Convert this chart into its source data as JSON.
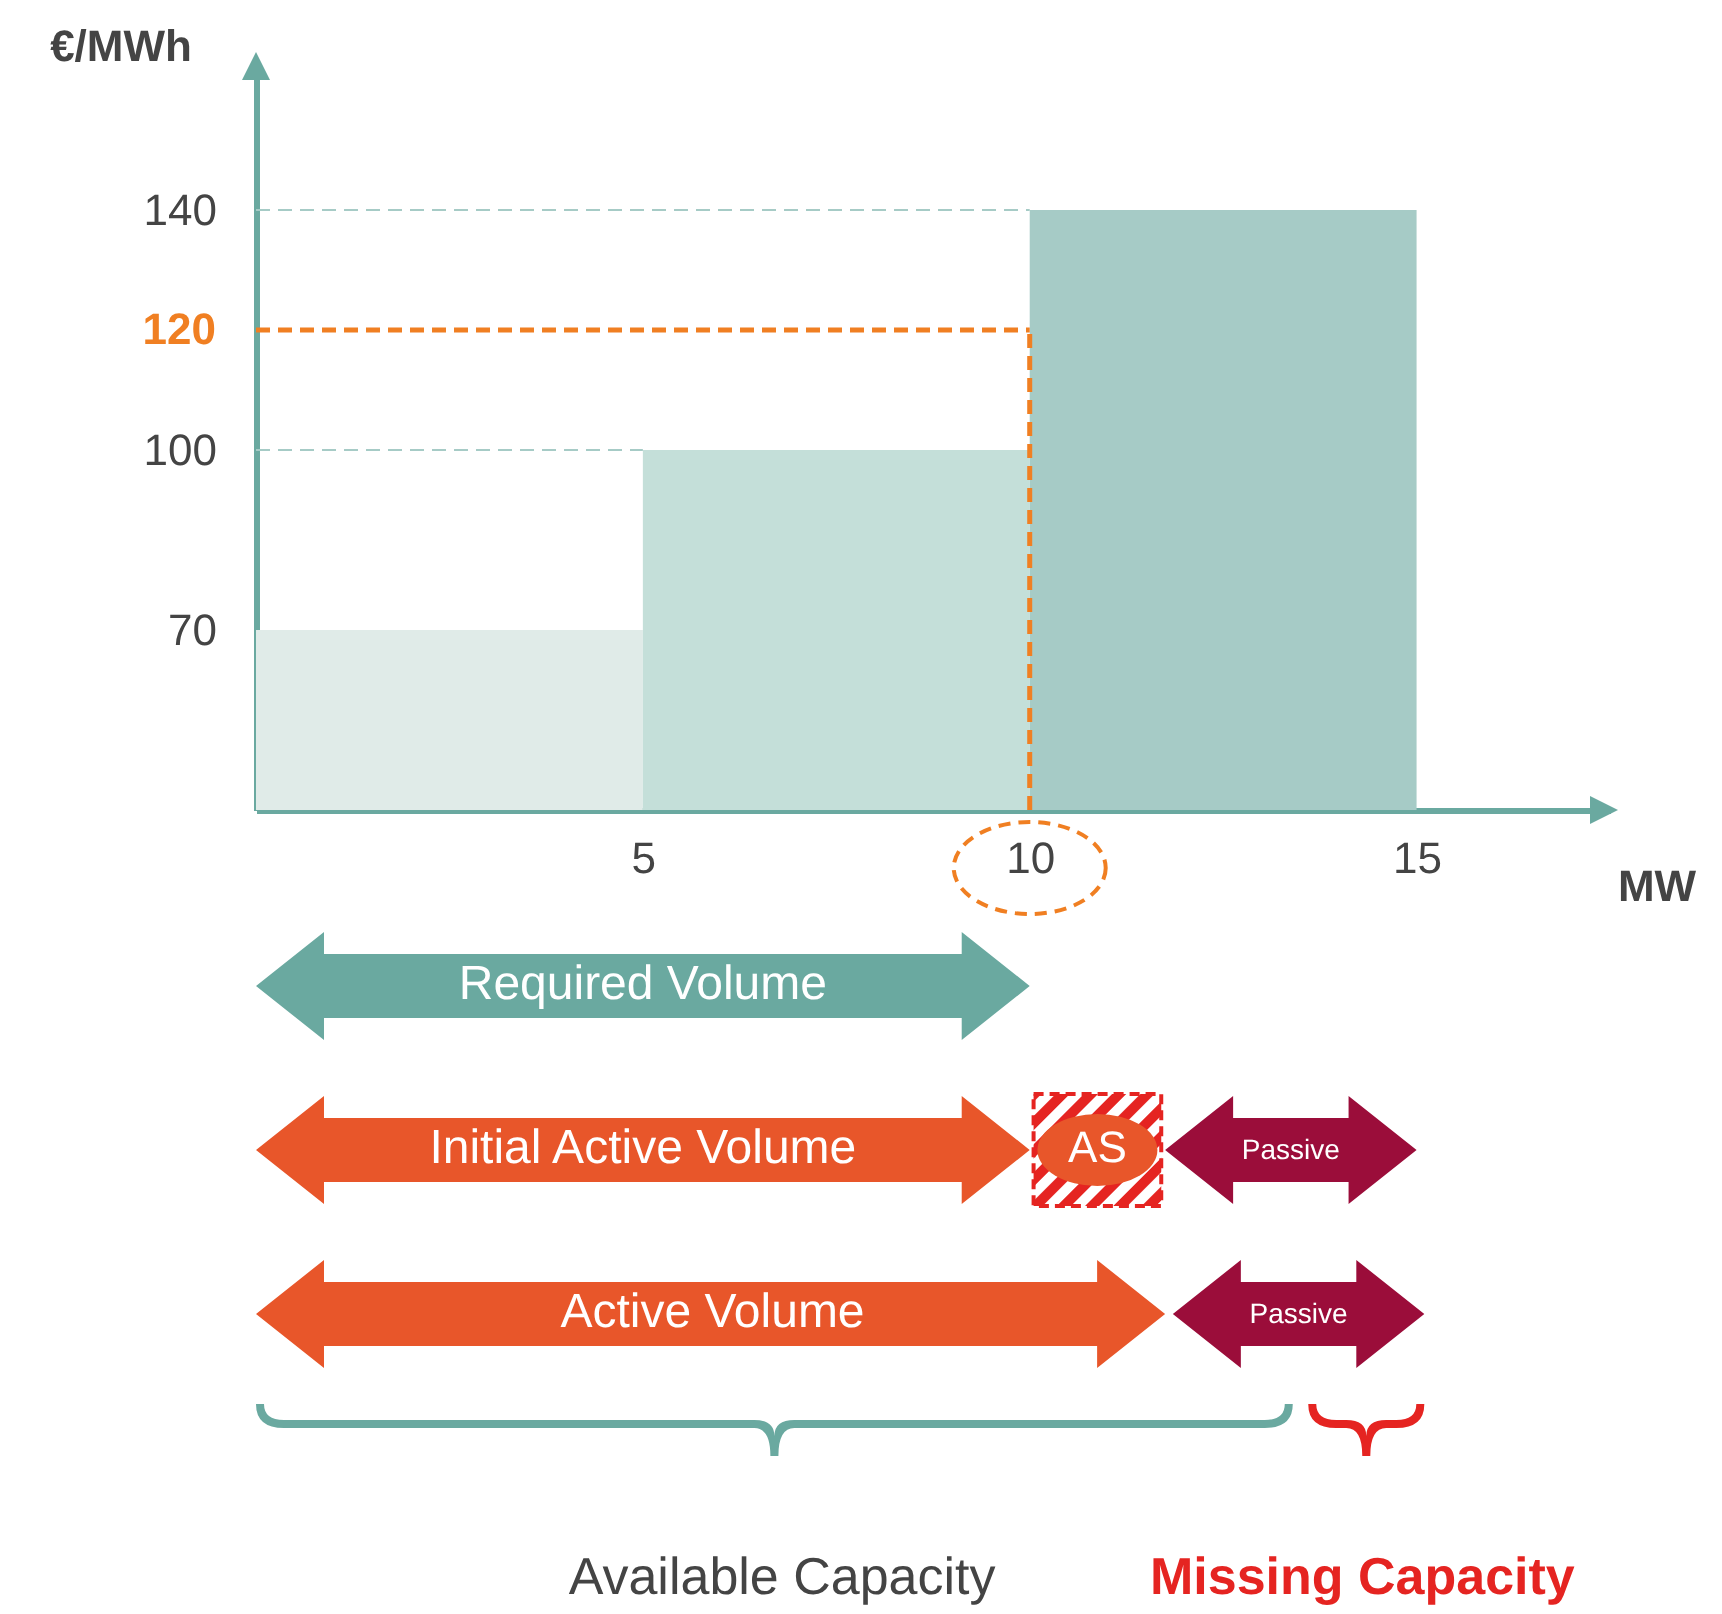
{
  "chart_data": {
    "type": "histogram",
    "bins": [
      0,
      5,
      10,
      15
    ],
    "values": [
      70,
      100,
      140
    ],
    "colors": [
      "#e0ebe8",
      "#c4dfd9",
      "#a6cbc6"
    ],
    "xlabel": "MW",
    "ylabel": "€/MWh",
    "xlim": [
      0,
      17.5
    ],
    "xticks": [
      5,
      10,
      15
    ],
    "ylim": [
      40,
      165
    ],
    "yticks": [
      70,
      100,
      140
    ],
    "ref_lines": [
      {
        "axis": "y",
        "value": 120,
        "label": "120",
        "color": "#f07f22",
        "line_style": "dashed"
      },
      {
        "axis": "x",
        "value": 10,
        "color": "#f07f22",
        "line_style": "dashed"
      },
      {
        "axis": "y",
        "value": 140,
        "color": "#a6cbc6",
        "line_style": "dashed"
      },
      {
        "axis": "y",
        "value": 100,
        "color": "#a6cbc6",
        "line_style": "dashed"
      }
    ],
    "annotations": [
      "Required Volume",
      "Initial Active Volume",
      "AS",
      "Passive",
      "Active Volume",
      "Passive",
      "Available Capacity",
      "Missing Capacity"
    ]
  }
}
